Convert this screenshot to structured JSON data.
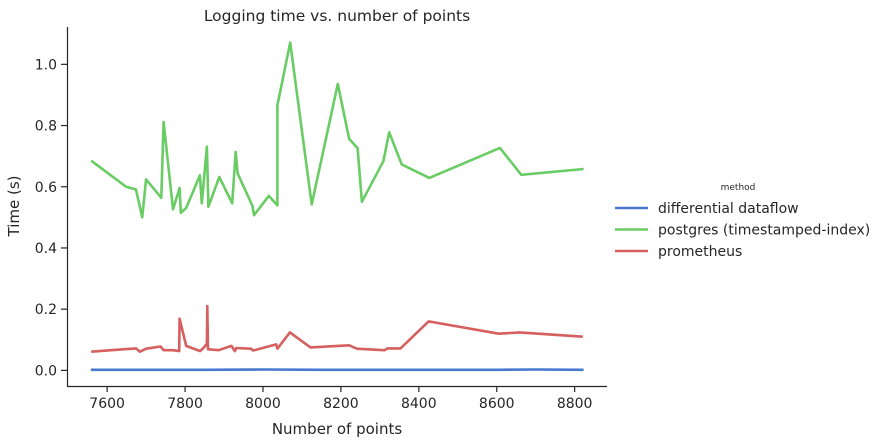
{
  "chart_data": {
    "type": "line",
    "title": "Logging time vs. number of points",
    "xlabel": "Number of points",
    "ylabel": "Time (s)",
    "xlim": [
      7497,
      8883
    ],
    "ylim": [
      -0.051,
      1.122
    ],
    "xticks": [
      7600,
      7800,
      8000,
      8200,
      8400,
      8600,
      8800
    ],
    "xtick_labels": [
      "7600",
      "7800",
      "8000",
      "8200",
      "8400",
      "8600",
      "8800"
    ],
    "yticks": [
      0.0,
      0.2,
      0.4,
      0.6,
      0.8,
      1.0
    ],
    "ytick_labels": [
      "0.0",
      "0.2",
      "0.4",
      "0.6",
      "0.8",
      "1.0"
    ],
    "grid": false,
    "legend": {
      "title": "method",
      "placement": "right-outside"
    },
    "series": [
      {
        "name": "differential dataflow",
        "color": "#4878d0",
        "x": [
          7558,
          7700,
          7850,
          8000,
          8150,
          8300,
          8450,
          8600,
          8700,
          8823
        ],
        "y": [
          0.002,
          0.002,
          0.002,
          0.003,
          0.002,
          0.002,
          0.002,
          0.002,
          0.003,
          0.002
        ]
      },
      {
        "name": "postgres (timestamped-index)",
        "color": "#6acc64",
        "x": [
          7559,
          7649,
          7674,
          7690,
          7700,
          7739,
          7745,
          7769,
          7786,
          7789,
          7803,
          7838,
          7843,
          7856,
          7860,
          7888,
          7921,
          7930,
          7935,
          7973,
          7977,
          8015,
          8037,
          8037,
          8070,
          8125,
          8192,
          8221,
          8243,
          8254,
          8309,
          8324,
          8356,
          8427,
          8608,
          8663,
          8823
        ],
        "y": [
          0.685,
          0.6,
          0.591,
          0.5,
          0.624,
          0.564,
          0.812,
          0.526,
          0.596,
          0.515,
          0.531,
          0.637,
          0.546,
          0.731,
          0.535,
          0.632,
          0.546,
          0.714,
          0.644,
          0.537,
          0.507,
          0.57,
          0.539,
          0.866,
          1.071,
          0.542,
          0.936,
          0.757,
          0.726,
          0.551,
          0.684,
          0.778,
          0.673,
          0.629,
          0.727,
          0.639,
          0.658
        ]
      },
      {
        "name": "prometheus",
        "color": "#d65f5f",
        "x": [
          7559,
          7674,
          7684,
          7700,
          7737,
          7745,
          7769,
          7785,
          7786,
          7803,
          7839,
          7850,
          7856,
          7857,
          7859,
          7886,
          7919,
          7928,
          7931,
          7969,
          7975,
          8034,
          8037,
          8069,
          8122,
          8221,
          8241,
          8312,
          8320,
          8353,
          8425,
          8605,
          8659,
          8821
        ],
        "y": [
          0.061,
          0.072,
          0.061,
          0.071,
          0.078,
          0.066,
          0.066,
          0.063,
          0.169,
          0.08,
          0.063,
          0.077,
          0.088,
          0.21,
          0.069,
          0.066,
          0.08,
          0.063,
          0.073,
          0.071,
          0.065,
          0.085,
          0.071,
          0.124,
          0.075,
          0.082,
          0.071,
          0.066,
          0.072,
          0.072,
          0.16,
          0.12,
          0.124,
          0.11
        ]
      }
    ]
  }
}
